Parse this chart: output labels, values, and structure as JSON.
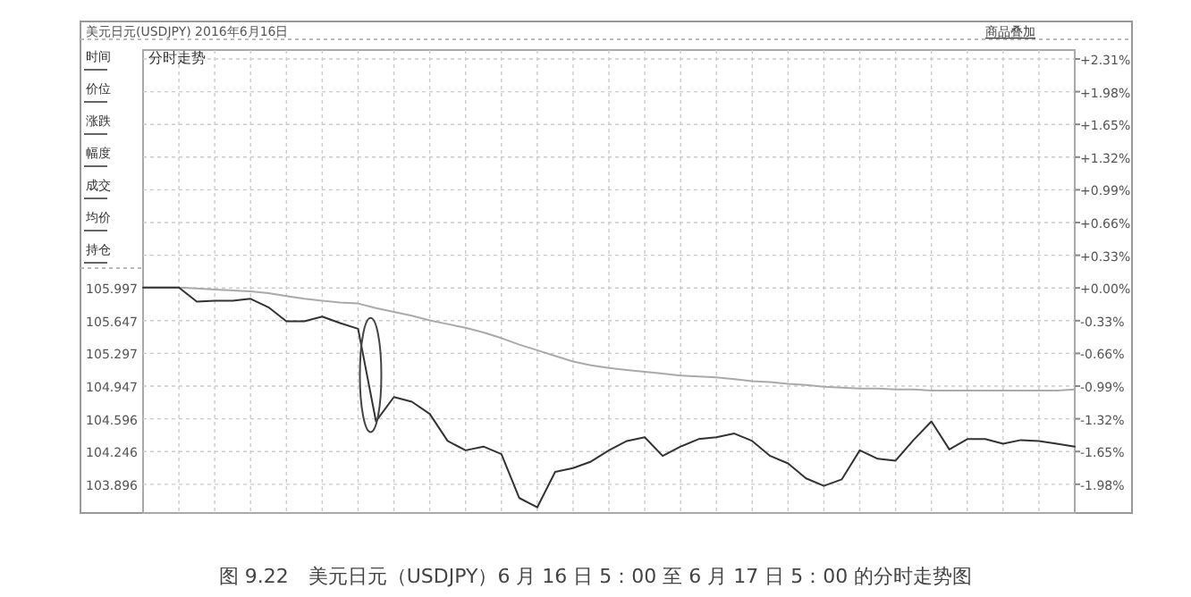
{
  "chart_data": {
    "type": "line",
    "title": "美元日元(USDJPY) 2016年6月16日",
    "subtitle": "分时走势",
    "annotations": [
      "商品叠加",
      "时间",
      "价位",
      "涨跌",
      "幅度",
      "成交",
      "均价",
      "持仓",
      "图 9.22　美元日元（USDJPY）6 月 16 日 5：00 至 6 月 17 日 5：00 的分时走势图"
    ],
    "categories": [
      null,
      null,
      null,
      null,
      null,
      null,
      null,
      null,
      null,
      null,
      null,
      null,
      null,
      null,
      null,
      null,
      null,
      null,
      null,
      null,
      null,
      null,
      null,
      null,
      null,
      null,
      null,
      null,
      null,
      null,
      null,
      null,
      null,
      null,
      null,
      null,
      null,
      null,
      null,
      null,
      null,
      null,
      null,
      null,
      null,
      null,
      null,
      null,
      null,
      null,
      null,
      null,
      null
    ],
    "series": [
      {
        "color": "#333333",
        "values": [
          106.0,
          106.0,
          106.0,
          105.85,
          105.86,
          105.86,
          105.88,
          105.79,
          105.64,
          105.64,
          105.69,
          105.62,
          105.56,
          104.57,
          104.83,
          104.78,
          104.65,
          104.36,
          104.26,
          104.3,
          104.22,
          103.75,
          103.65,
          104.03,
          104.07,
          104.14,
          104.26,
          104.36,
          104.4,
          104.2,
          104.3,
          104.38,
          104.4,
          104.44,
          104.36,
          104.2,
          104.12,
          103.96,
          103.88,
          103.95,
          104.26,
          104.17,
          104.15,
          104.37,
          104.57,
          104.27,
          104.38,
          104.38,
          104.33,
          104.37,
          104.36,
          104.33,
          104.3
        ]
      },
      {
        "color": "#aaaaaa",
        "values": [
          106.0,
          106.0,
          106.0,
          105.99,
          105.98,
          105.97,
          105.96,
          105.94,
          105.91,
          105.88,
          105.86,
          105.84,
          105.83,
          105.78,
          105.74,
          105.7,
          105.65,
          105.61,
          105.57,
          105.52,
          105.46,
          105.39,
          105.33,
          105.27,
          105.21,
          105.17,
          105.14,
          105.12,
          105.1,
          105.08,
          105.06,
          105.05,
          105.04,
          105.02,
          105.0,
          104.99,
          104.97,
          104.96,
          104.94,
          104.93,
          104.92,
          104.92,
          104.91,
          104.91,
          104.9,
          104.9,
          104.9,
          104.9,
          104.9,
          104.9,
          104.9,
          104.9,
          104.91
        ]
      }
    ],
    "ylim": [
      103.59,
      108.54
    ],
    "yticks": [
      105.997,
      105.647,
      105.297,
      104.947,
      104.596,
      104.246,
      103.896
    ],
    "y2lim": [
      -2.27,
      2.4
    ],
    "y2ticks": [
      {
        "value": 2.31,
        "label": "+2.31%"
      },
      {
        "value": 1.98,
        "label": "+1.98%"
      },
      {
        "value": 1.65,
        "label": "+1.65%"
      },
      {
        "value": 1.32,
        "label": "+1.32%"
      },
      {
        "value": 0.99,
        "label": "+0.99%"
      },
      {
        "value": 0.66,
        "label": "+0.66%"
      },
      {
        "value": 0.33,
        "label": "+0.33%"
      },
      {
        "value": 0,
        "label": "+0.00%"
      },
      {
        "value": -0.33,
        "label": "-0.33%"
      },
      {
        "value": -0.66,
        "label": "-0.66%"
      },
      {
        "value": -0.99,
        "label": "-0.99%"
      },
      {
        "value": -1.32,
        "label": "-1.32%"
      },
      {
        "value": -1.65,
        "label": "-1.65%"
      },
      {
        "value": -1.98,
        "label": "-1.98%"
      }
    ],
    "grid": true,
    "marker": "none",
    "line_style": "solid"
  }
}
